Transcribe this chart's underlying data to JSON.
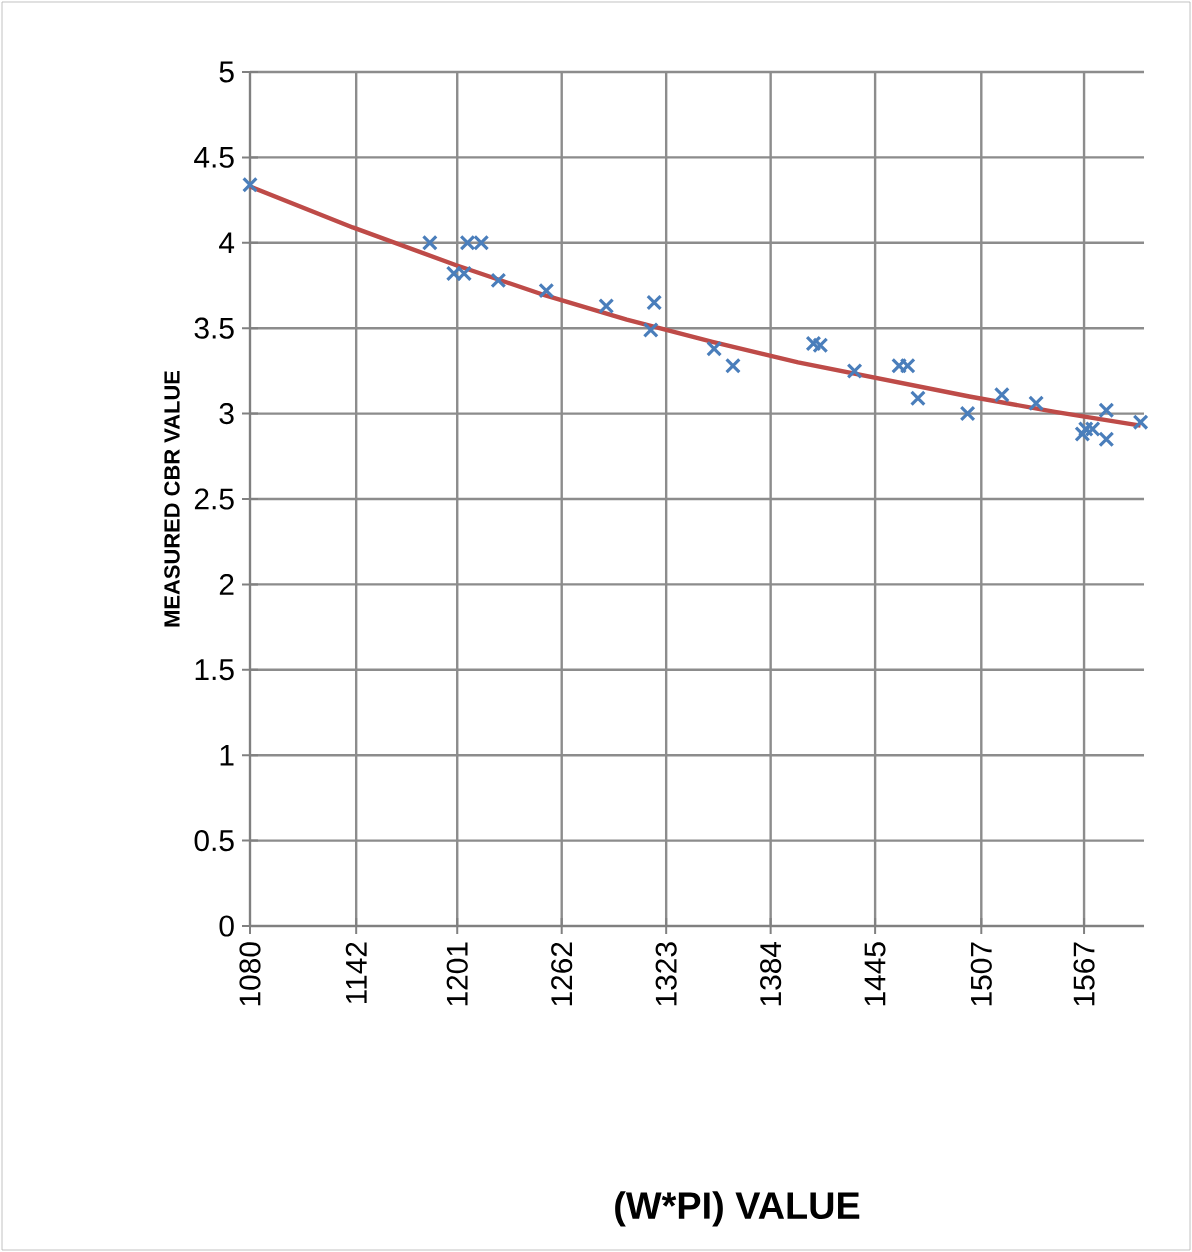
{
  "chart_data": {
    "type": "scatter",
    "xlabel": "(W*PI)   VALUE",
    "ylabel": "MEASURED  CBR VALUE",
    "xlim": [
      1080,
      1602
    ],
    "ylim": [
      0,
      5
    ],
    "xticks": [
      1080,
      1142,
      1201,
      1262,
      1323,
      1384,
      1445,
      1507,
      1567
    ],
    "yticks": [
      0,
      0.5,
      1,
      1.5,
      2,
      2.5,
      3,
      3.5,
      4,
      4.5,
      5
    ],
    "grid": true,
    "marker": "cross",
    "series": [
      {
        "color": "#4a7ebb",
        "x": [
          1080,
          1185,
          1199,
          1205,
          1207,
          1215,
          1225,
          1253,
          1288,
          1314,
          1316,
          1351,
          1362,
          1409,
          1413,
          1433,
          1459,
          1464,
          1470,
          1499,
          1519,
          1539,
          1566,
          1568,
          1572,
          1580,
          1580,
          1600
        ],
        "values": [
          4.34,
          4.0,
          3.82,
          3.82,
          4.0,
          4.0,
          3.78,
          3.72,
          3.63,
          3.49,
          3.65,
          3.38,
          3.28,
          3.41,
          3.4,
          3.25,
          3.28,
          3.28,
          3.09,
          3.0,
          3.11,
          3.06,
          2.88,
          2.91,
          2.91,
          3.02,
          2.85,
          2.95
        ]
      },
      {
        "type": "line",
        "color": "#be4b48",
        "marker": "none",
        "x": [
          1080,
          1140,
          1200,
          1250,
          1300,
          1350,
          1400,
          1450,
          1500,
          1550,
          1600
        ],
        "values": [
          4.33,
          4.09,
          3.87,
          3.7,
          3.55,
          3.42,
          3.3,
          3.2,
          3.1,
          3.01,
          2.93
        ]
      }
    ]
  }
}
